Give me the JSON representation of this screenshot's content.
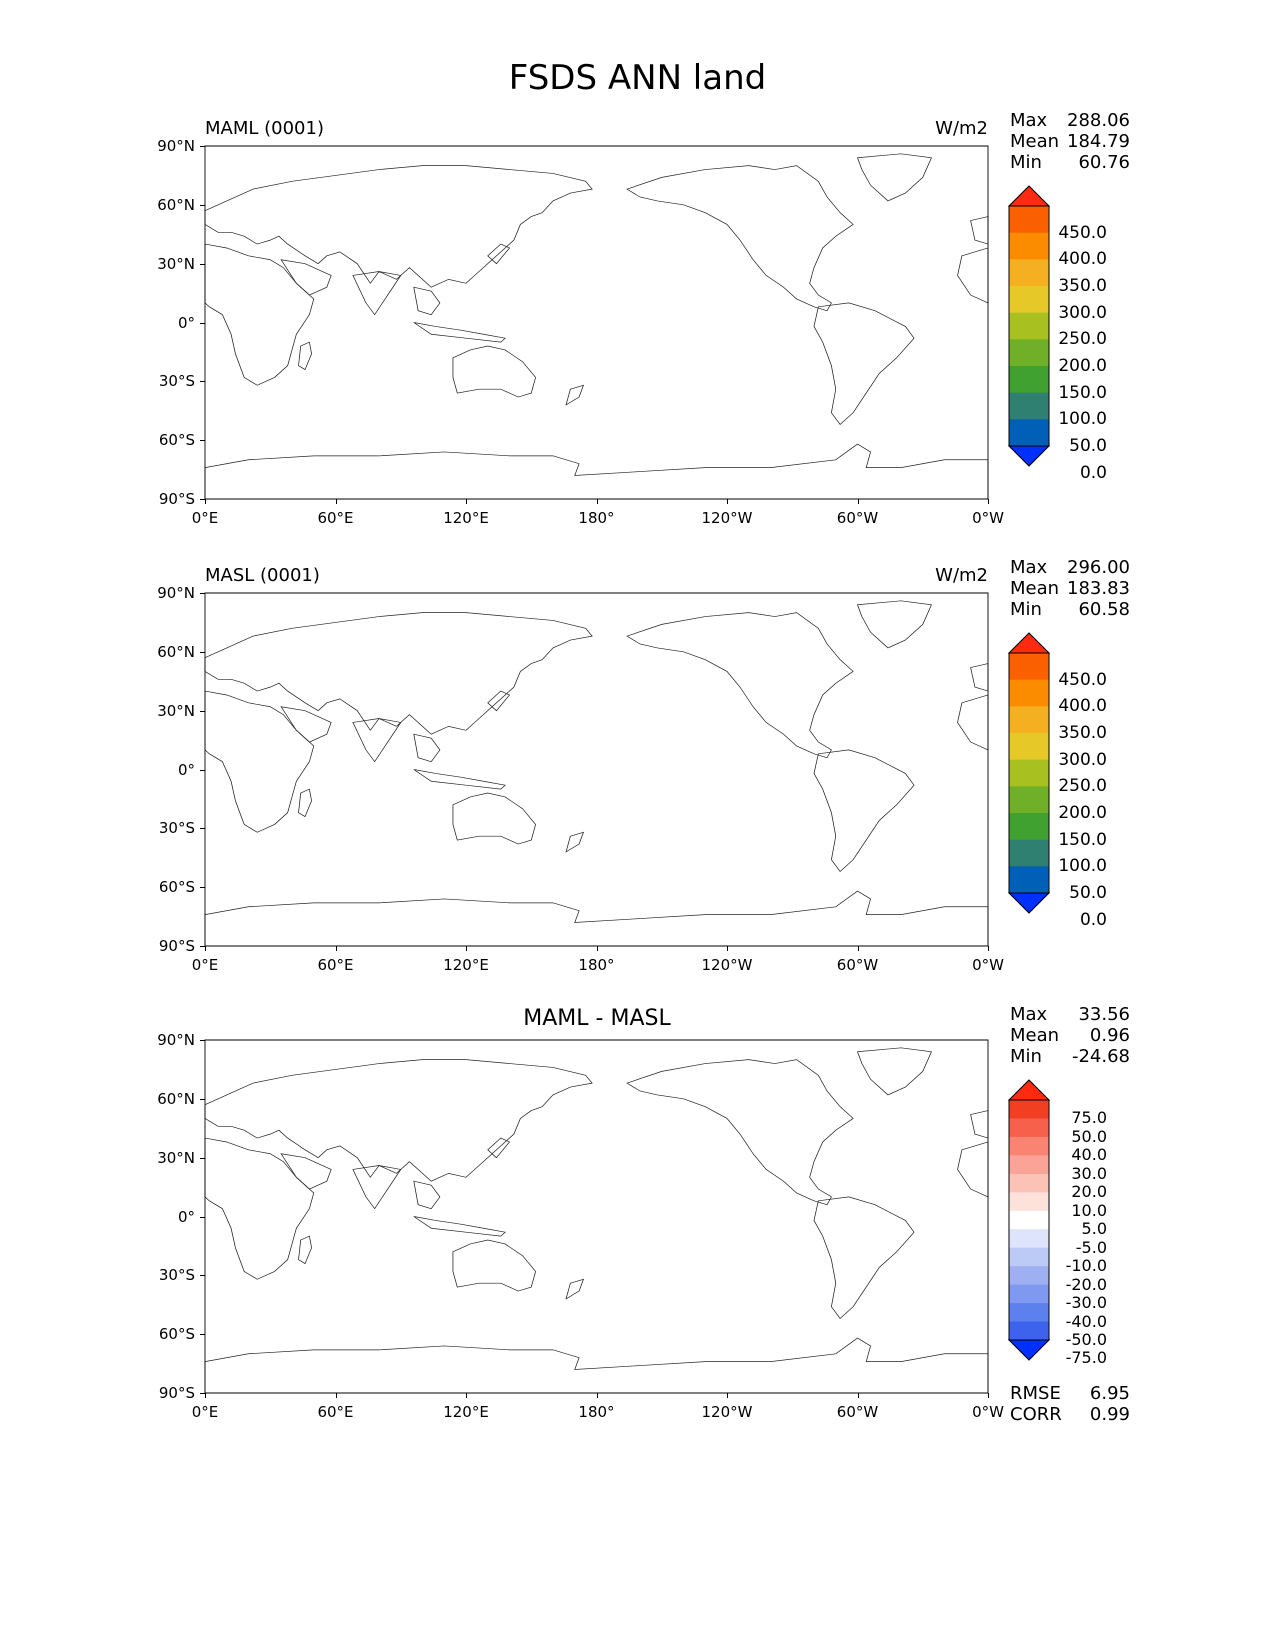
{
  "title": "FSDS ANN land",
  "colors": {
    "ocean": "#ffffff",
    "coast": "#222222",
    "frame": "#000000",
    "abs_scale": [
      "#0030ff",
      "#0060b8",
      "#2f8070",
      "#40a030",
      "#70b028",
      "#a8c020",
      "#e6c828",
      "#f4b020",
      "#fb8c00",
      "#fa6000",
      "#ff2a10"
    ],
    "diff_scale": [
      "#0030ff",
      "#3c62ee",
      "#5c80ee",
      "#7f98f0",
      "#9eb0f2",
      "#bccaf6",
      "#dde4fb",
      "#ffffff",
      "#fde2dc",
      "#fcc2b6",
      "#fba396",
      "#f98472",
      "#f7614c",
      "#f23f22",
      "#ff2a10"
    ]
  },
  "axes": {
    "lat_ticks": [
      "90°N",
      "60°N",
      "30°N",
      "0°",
      "30°S",
      "60°S",
      "90°S"
    ],
    "lon_ticks": [
      "0°E",
      "60°E",
      "120°E",
      "180°",
      "120°W",
      "60°W",
      "0°W"
    ]
  },
  "panels": [
    {
      "label": "MAML (0001)",
      "units": "W/m2",
      "center_title": "",
      "stats": {
        "max_label": "Max",
        "max": "288.06",
        "mean_label": "Mean",
        "mean": "184.79",
        "min_label": "Min",
        "min": "60.76"
      },
      "colorbar": {
        "labels": [
          "450.0",
          "400.0",
          "350.0",
          "300.0",
          "250.0",
          "200.0",
          "150.0",
          "100.0",
          "50.0",
          "0.0"
        ]
      },
      "kind": "abs",
      "land_fill": [
        "#40a030",
        "#2f8070",
        "#70b028",
        "#a8c020",
        "#e6c828"
      ]
    },
    {
      "label": "MASL (0001)",
      "units": "W/m2",
      "center_title": "",
      "stats": {
        "max_label": "Max",
        "max": "296.00",
        "mean_label": "Mean",
        "mean": "183.83",
        "min_label": "Min",
        "min": "60.58"
      },
      "colorbar": {
        "labels": [
          "450.0",
          "400.0",
          "350.0",
          "300.0",
          "250.0",
          "200.0",
          "150.0",
          "100.0",
          "50.0",
          "0.0"
        ]
      },
      "kind": "abs",
      "land_fill": [
        "#40a030",
        "#2f8070",
        "#70b028",
        "#a8c020",
        "#e6c828"
      ]
    },
    {
      "label": "",
      "units": "",
      "center_title": "MAML - MASL",
      "stats": {
        "max_label": "Max",
        "max": "33.56",
        "mean_label": "Mean",
        "mean": "0.96",
        "min_label": "Min",
        "min": "-24.68"
      },
      "colorbar": {
        "labels": [
          "75.0",
          "50.0",
          "40.0",
          "30.0",
          "20.0",
          "10.0",
          "5.0",
          "-5.0",
          "-10.0",
          "-20.0",
          "-30.0",
          "-40.0",
          "-50.0",
          "-75.0"
        ]
      },
      "kind": "diff",
      "extra_stats": {
        "rmse_label": "RMSE",
        "rmse": "6.95",
        "corr_label": "CORR",
        "corr": "0.99"
      }
    }
  ]
}
